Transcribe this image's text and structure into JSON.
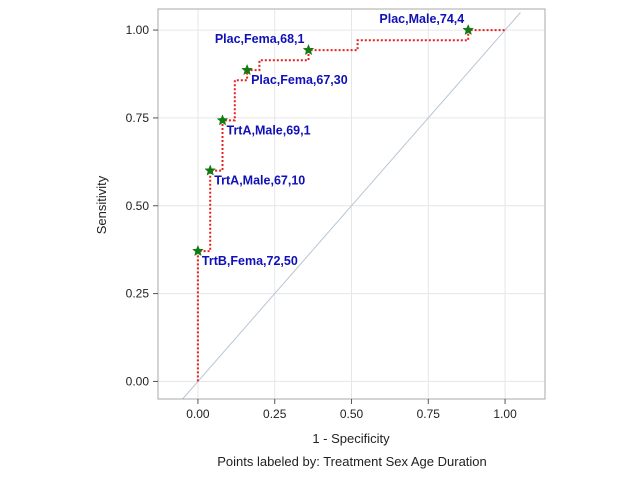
{
  "chart_data": {
    "type": "line",
    "xlabel": "1 - Specificity",
    "ylabel": "Sensitivity",
    "footnote": "Points labeled by: Treatment Sex Age Duration",
    "xlim": [
      -0.13,
      1.13
    ],
    "ylim": [
      -0.05,
      1.06
    ],
    "x_ticks": [
      0.0,
      0.25,
      0.5,
      0.75,
      1.0
    ],
    "y_ticks": [
      0.0,
      0.25,
      0.5,
      0.75,
      1.0
    ],
    "x_tick_labels": [
      "0.00",
      "0.25",
      "0.50",
      "0.75",
      "1.00"
    ],
    "y_tick_labels": [
      "0.00",
      "0.25",
      "0.50",
      "0.75",
      "1.00"
    ],
    "grid": true,
    "series": [
      {
        "style": "step",
        "color": "#e8201e",
        "x": [
          0.0,
          0.0,
          0.04,
          0.04,
          0.08,
          0.08,
          0.12,
          0.12,
          0.16,
          0.16,
          0.2,
          0.2,
          0.36,
          0.36,
          0.52,
          0.52,
          0.88,
          0.88,
          1.0
        ],
        "y": [
          0.0,
          0.371,
          0.371,
          0.6,
          0.6,
          0.743,
          0.743,
          0.857,
          0.857,
          0.886,
          0.886,
          0.914,
          0.914,
          0.943,
          0.943,
          0.971,
          0.971,
          1.0,
          1.0
        ]
      }
    ],
    "reference_line": {
      "color": "#b6c5d6",
      "x": [
        -0.05,
        1.05
      ],
      "y": [
        -0.05,
        1.05
      ]
    },
    "labeled_points": [
      {
        "x": 0.0,
        "y": 0.371,
        "label": "TrtB,Fema,72,50"
      },
      {
        "x": 0.04,
        "y": 0.6,
        "label": "TrtA,Male,67,10"
      },
      {
        "x": 0.08,
        "y": 0.743,
        "label": "TrtA,Male,69,1"
      },
      {
        "x": 0.16,
        "y": 0.886,
        "label": "Plac,Fema,67,30"
      },
      {
        "x": 0.36,
        "y": 0.943,
        "label": "Plac,Fema,68,1"
      },
      {
        "x": 0.88,
        "y": 1.0,
        "label": "Plac,Male,74,4"
      }
    ],
    "colors": {
      "label_text": "#1010b8",
      "marker_fill": "#127a12",
      "grid": "#e6e6e6",
      "frame": "#a8a8a8"
    }
  }
}
